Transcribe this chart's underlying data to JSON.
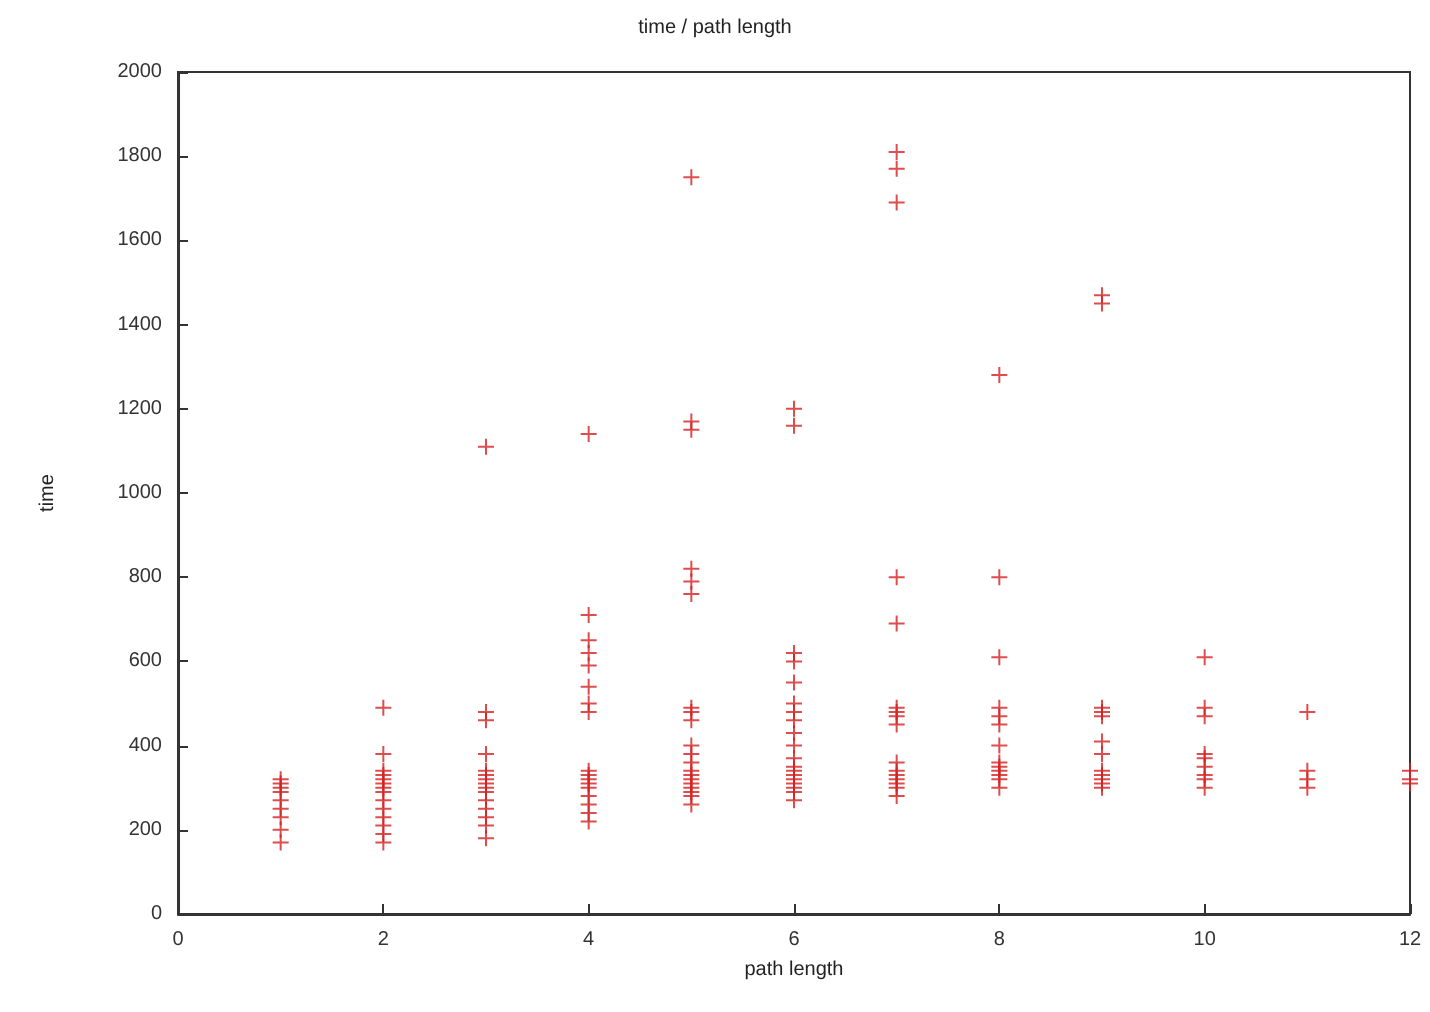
{
  "chart_data": {
    "type": "scatter",
    "title": "time / path length",
    "xlabel": "path length",
    "ylabel": "time",
    "xlim": [
      0,
      12
    ],
    "xticks": [
      0,
      2,
      4,
      6,
      8,
      10,
      12
    ],
    "ylim": [
      0,
      2000
    ],
    "yticks": [
      0,
      200,
      400,
      600,
      800,
      1000,
      1200,
      1400,
      1600,
      1800,
      2000
    ],
    "grid": false,
    "marker": "cross",
    "x": [
      1,
      1,
      1,
      1,
      1,
      1,
      1,
      1,
      1,
      2,
      2,
      2,
      2,
      2,
      2,
      2,
      2,
      2,
      2,
      2,
      2,
      2,
      2,
      3,
      3,
      3,
      3,
      3,
      3,
      3,
      3,
      3,
      3,
      3,
      3,
      3,
      3,
      3,
      4,
      4,
      4,
      4,
      4,
      4,
      4,
      4,
      4,
      4,
      4,
      4,
      4,
      4,
      4,
      4,
      4,
      5,
      5,
      5,
      5,
      5,
      5,
      5,
      5,
      5,
      5,
      5,
      5,
      5,
      5,
      5,
      5,
      5,
      5,
      5,
      5,
      6,
      6,
      6,
      6,
      6,
      6,
      6,
      6,
      6,
      6,
      6,
      6,
      6,
      6,
      6,
      6,
      6,
      6,
      6,
      7,
      7,
      7,
      7,
      7,
      7,
      7,
      7,
      7,
      7,
      7,
      7,
      7,
      7,
      7,
      7,
      8,
      8,
      8,
      8,
      8,
      8,
      8,
      8,
      8,
      8,
      8,
      8,
      8,
      9,
      9,
      9,
      9,
      9,
      9,
      9,
      9,
      9,
      9,
      9,
      9,
      10,
      10,
      10,
      10,
      10,
      10,
      10,
      10,
      10,
      11,
      11,
      11,
      11,
      12,
      12,
      12
    ],
    "series": [
      {
        "color": "#d42020",
        "values": [
          170,
          200,
          230,
          250,
          270,
          290,
          300,
          310,
          320,
          170,
          190,
          210,
          230,
          250,
          270,
          290,
          300,
          310,
          320,
          330,
          340,
          380,
          490,
          180,
          210,
          230,
          250,
          270,
          290,
          300,
          310,
          320,
          330,
          340,
          380,
          460,
          480,
          1110,
          220,
          240,
          260,
          280,
          300,
          310,
          320,
          330,
          340,
          480,
          500,
          540,
          590,
          620,
          650,
          710,
          1140,
          260,
          280,
          290,
          300,
          310,
          320,
          330,
          340,
          360,
          380,
          400,
          460,
          480,
          490,
          760,
          790,
          820,
          1150,
          1170,
          1750,
          270,
          290,
          300,
          310,
          320,
          330,
          340,
          350,
          370,
          400,
          430,
          460,
          480,
          500,
          550,
          600,
          620,
          1160,
          1200,
          280,
          300,
          310,
          320,
          330,
          340,
          360,
          450,
          470,
          480,
          490,
          690,
          800,
          1690,
          1770,
          1810,
          300,
          320,
          330,
          340,
          350,
          360,
          400,
          450,
          470,
          490,
          610,
          800,
          1280,
          300,
          310,
          320,
          330,
          340,
          380,
          410,
          470,
          480,
          490,
          1450,
          1470,
          300,
          320,
          330,
          350,
          370,
          380,
          470,
          490,
          610,
          300,
          320,
          340,
          480,
          310,
          320,
          340
        ]
      }
    ]
  }
}
